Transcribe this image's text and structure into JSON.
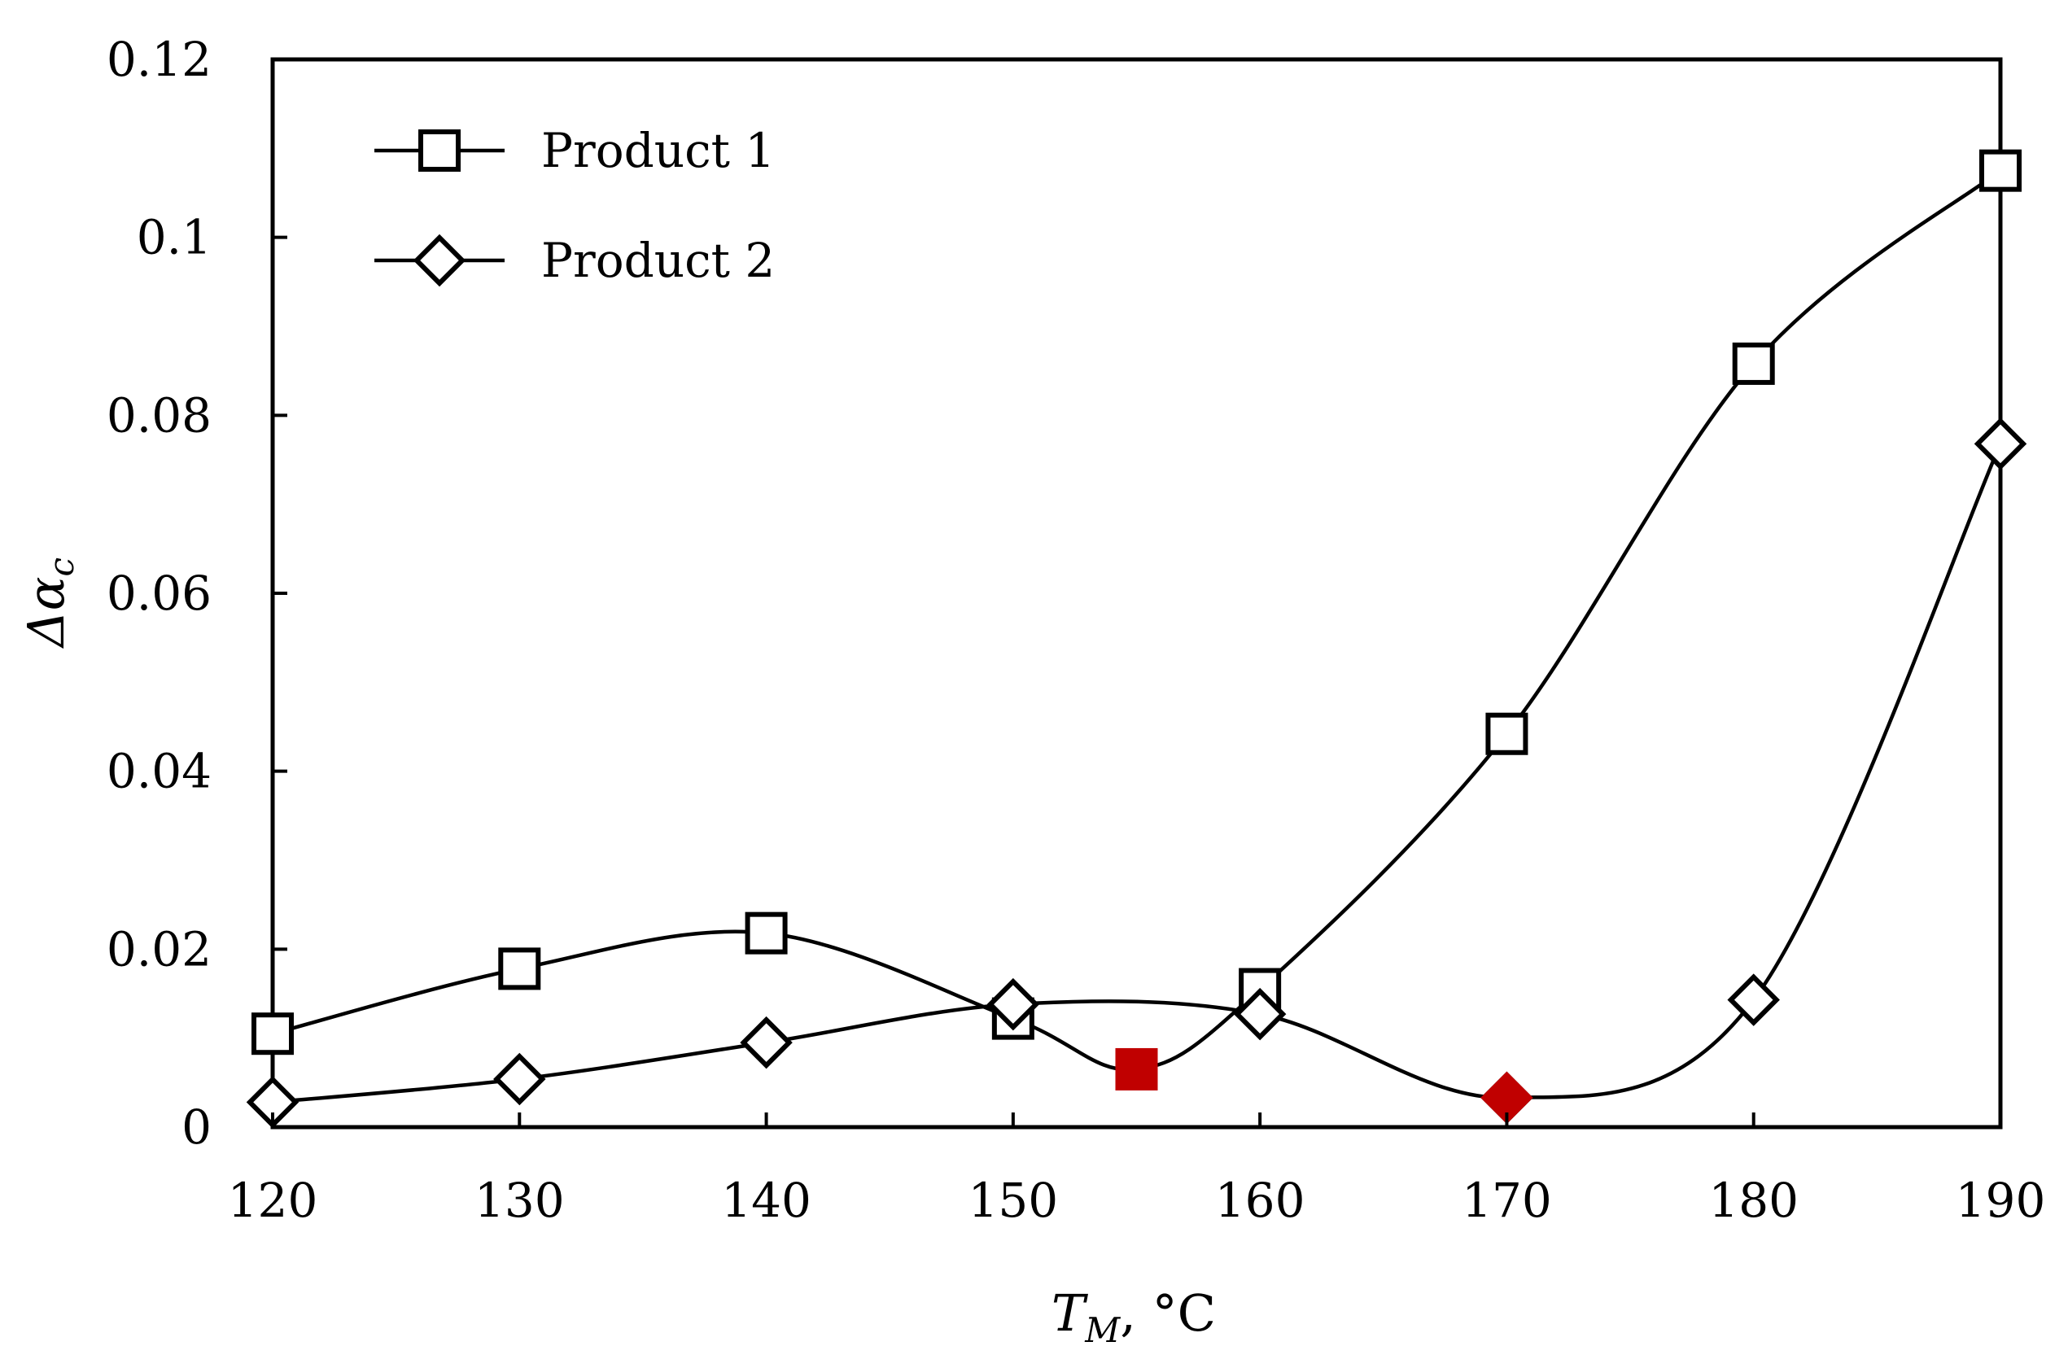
{
  "chart_data": {
    "type": "line",
    "title": "",
    "xlabel": {
      "symbol": "T",
      "subscript": "M",
      "unit": ", °C"
    },
    "ylabel": {
      "symbol": "Δα",
      "subscript": "c"
    },
    "xlim": [
      120,
      190
    ],
    "ylim": [
      0,
      0.12
    ],
    "x_ticks": [
      120,
      130,
      140,
      150,
      160,
      170,
      180,
      190
    ],
    "x_tick_labels": [
      "120",
      "130",
      "140",
      "150",
      "160",
      "170",
      "180",
      "190"
    ],
    "y_ticks": [
      0,
      0.02,
      0.04,
      0.06,
      0.08,
      0.1,
      0.12
    ],
    "y_tick_labels": [
      "0",
      "0.02",
      "0.04",
      "0.06",
      "0.08",
      "0.1",
      "0.12"
    ],
    "grid": false,
    "legend_position": "top-left",
    "series": [
      {
        "name": "Product 1",
        "marker": "square",
        "line_color": "#000000",
        "x": [
          120,
          130,
          140,
          150,
          160,
          170,
          180,
          190
        ],
        "y": [
          0.0105,
          0.0178,
          0.0218,
          0.0122,
          0.0155,
          0.0442,
          0.0858,
          0.1075
        ]
      },
      {
        "name": "Product 2",
        "marker": "diamond",
        "line_color": "#000000",
        "x": [
          120,
          130,
          140,
          150,
          160,
          170,
          180,
          190
        ],
        "y": [
          0.0028,
          0.0054,
          0.0095,
          0.0138,
          0.0127,
          0.0033,
          0.0143,
          0.0768
        ]
      }
    ],
    "highlighted_points": [
      {
        "marker": "square",
        "color": "#c00000",
        "x": 155,
        "y": 0.0065
      },
      {
        "marker": "diamond",
        "color": "#c00000",
        "x": 170,
        "y": 0.0033
      }
    ]
  }
}
